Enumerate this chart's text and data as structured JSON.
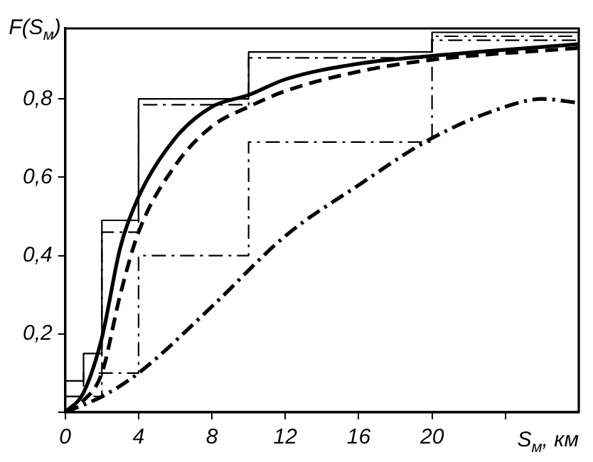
{
  "chart_data": {
    "type": "line",
    "xlabel": "S$_{м}$, км",
    "ylabel": "F(S$_{м}$)",
    "xlim": [
      0,
      28
    ],
    "ylim": [
      0,
      0.98
    ],
    "xticks": [
      0,
      4,
      8,
      12,
      16,
      20,
      {
        "value": 24,
        "label": null
      }
    ],
    "yticks": [
      {
        "value": 0,
        "label": null
      },
      {
        "value": 0.2,
        "label": "0,2"
      },
      {
        "value": 0.4,
        "label": "0,4"
      },
      {
        "value": 0.6,
        "label": "0,6"
      },
      {
        "value": 0.8,
        "label": "0,8"
      }
    ],
    "grid": false,
    "legend": false,
    "marker": "none",
    "series": [
      {
        "type": "step",
        "color": "#000000",
        "line_style": "solid",
        "x": [
          0,
          1,
          2,
          4,
          10,
          20,
          28
        ],
        "values": [
          0.08,
          0.15,
          0.49,
          0.8,
          0.92,
          0.97,
          0.97
        ]
      },
      {
        "type": "step",
        "color": "#000000",
        "line_style": "dashed",
        "x": [
          0,
          1,
          2,
          4,
          10,
          20,
          28
        ],
        "values": [
          0.04,
          0.1,
          0.46,
          0.785,
          0.905,
          0.96,
          0.96
        ]
      },
      {
        "type": "step",
        "color": "#000000",
        "line_style": "dashed",
        "x": [
          0,
          2,
          4,
          10,
          20,
          28
        ],
        "values": [
          0.04,
          0.1,
          0.4,
          0.69,
          0.95,
          0.95
        ]
      },
      {
        "type": "line",
        "color": "#000000",
        "line_style": "solid",
        "x": [
          0,
          1,
          2,
          3,
          4,
          6,
          8,
          10,
          12,
          16,
          20,
          28
        ],
        "values": [
          0,
          0.05,
          0.19,
          0.42,
          0.55,
          0.7,
          0.78,
          0.81,
          0.85,
          0.89,
          0.91,
          0.94
        ]
      },
      {
        "type": "line",
        "color": "#000000",
        "line_style": "dashed",
        "x": [
          0,
          1,
          2,
          3,
          4,
          6,
          8,
          10,
          12,
          16,
          20,
          28
        ],
        "values": [
          0,
          0.03,
          0.1,
          0.3,
          0.46,
          0.63,
          0.73,
          0.78,
          0.82,
          0.87,
          0.9,
          0.93
        ]
      },
      {
        "type": "line",
        "color": "#000000",
        "line_style": "dotted",
        "x": [
          0,
          2,
          4,
          8,
          12,
          16,
          20,
          24,
          26,
          28
        ],
        "values": [
          0,
          0.04,
          0.1,
          0.27,
          0.45,
          0.58,
          0.7,
          0.78,
          0.8,
          0.79
        ]
      }
    ]
  }
}
